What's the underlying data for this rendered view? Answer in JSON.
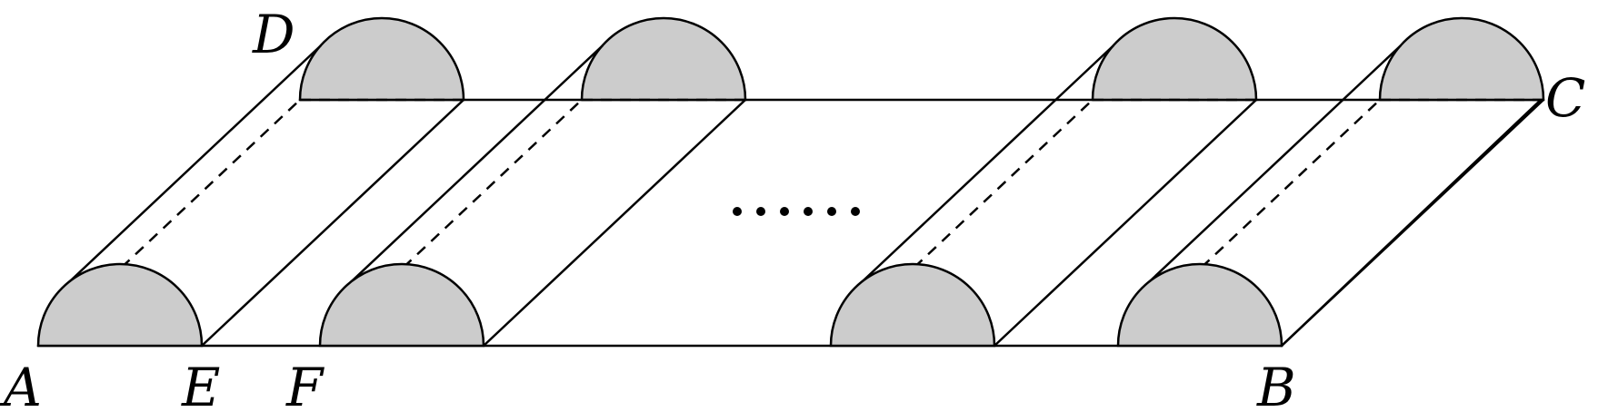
{
  "figure": {
    "cap_fill": "#cccccc",
    "line_color": "#000000",
    "ellipsis": "......",
    "labels": {
      "A": "A",
      "B": "B",
      "C": "C",
      "D": "D",
      "E": "E",
      "F": "F"
    }
  }
}
